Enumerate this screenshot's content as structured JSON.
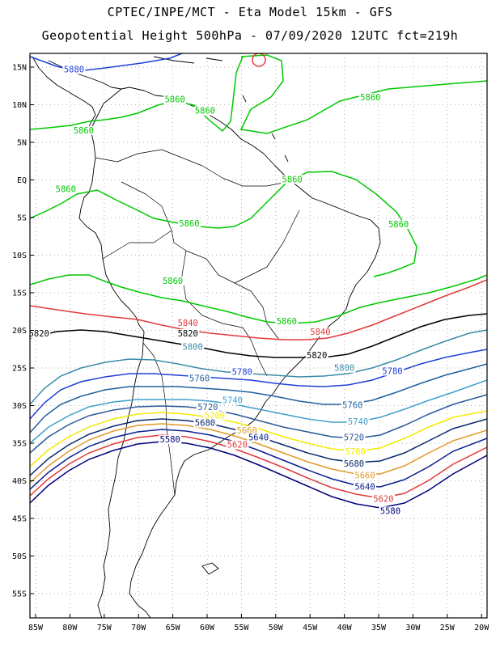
{
  "title": {
    "line1": "CPTEC/INPE/MCT -  Eta Model 15km - GFS",
    "line2": "Geopotential Height 500hPa - 07/09/2020 12UTC fct=219h"
  },
  "axes": {
    "lat_labels": [
      "15N",
      "10N",
      "5N",
      "EQ",
      "5S",
      "10S",
      "15S",
      "20S",
      "25S",
      "30S",
      "35S",
      "40S",
      "45S",
      "50S",
      "55S"
    ],
    "lon_labels": [
      "85W",
      "80W",
      "75W",
      "70W",
      "65W",
      "60W",
      "55W",
      "50W",
      "45W",
      "40W",
      "35W",
      "30W",
      "25W",
      "20W"
    ]
  },
  "chart_data": {
    "type": "contour-map",
    "variable": "Geopotential Height 500hPa",
    "lat_range": [
      -58,
      16
    ],
    "lon_range": [
      -86,
      -20
    ],
    "levels": [
      {
        "value": 5580,
        "color": "#00007a"
      },
      {
        "value": 5620,
        "color": "#e23a3a"
      },
      {
        "value": 5640,
        "color": "#0a1f8f"
      },
      {
        "value": 5660,
        "color": "#e39a2a"
      },
      {
        "value": 5680,
        "color": "#0a2a6e"
      },
      {
        "value": 5700,
        "color": "#f2ea00"
      },
      {
        "value": 5720,
        "color": "#2a5a9a"
      },
      {
        "value": 5740,
        "color": "#3f9fcf"
      },
      {
        "value": 5760,
        "color": "#1f5f9f"
      },
      {
        "value": 5780,
        "color": "#1e40d8"
      },
      {
        "value": 5800,
        "color": "#3a8aa8"
      },
      {
        "value": 5820,
        "color": "#000000"
      },
      {
        "value": 5840,
        "color": "#e23a3a"
      },
      {
        "value": 5860,
        "color": "#00c800"
      },
      {
        "value": 5880,
        "color": "#1e40d8"
      }
    ],
    "contour_labels": [
      {
        "text": "5880",
        "lon": -79.4,
        "lat": 14.3,
        "color": "#1e40d8"
      },
      {
        "text": "5860",
        "lon": -64.7,
        "lat": 10.3,
        "color": "#00c800"
      },
      {
        "text": "5860",
        "lon": -60.3,
        "lat": 8.8,
        "color": "#00c800"
      },
      {
        "text": "5860",
        "lon": -36.2,
        "lat": 10.6,
        "color": "#00c800"
      },
      {
        "text": "5860",
        "lon": -78.0,
        "lat": 6.2,
        "color": "#00c800"
      },
      {
        "text": "5860",
        "lon": -47.6,
        "lat": -0.3,
        "color": "#00c800"
      },
      {
        "text": "5860",
        "lon": -80.6,
        "lat": -1.6,
        "color": "#00c800"
      },
      {
        "text": "5860",
        "lon": -62.6,
        "lat": -6.2,
        "color": "#00c800"
      },
      {
        "text": "5860",
        "lon": -32.1,
        "lat": -6.3,
        "color": "#00c800"
      },
      {
        "text": "5860",
        "lon": -65.0,
        "lat": -13.8,
        "color": "#00c800"
      },
      {
        "text": "5860",
        "lon": -48.4,
        "lat": -19.2,
        "color": "#00c800"
      },
      {
        "text": "5840",
        "lon": -62.8,
        "lat": -19.4,
        "color": "#e23a3a"
      },
      {
        "text": "5840",
        "lon": -43.5,
        "lat": -20.6,
        "color": "#e23a3a"
      },
      {
        "text": "5820",
        "lon": -84.5,
        "lat": -20.8,
        "color": "#000000"
      },
      {
        "text": "5820",
        "lon": -62.8,
        "lat": -20.8,
        "color": "#000000"
      },
      {
        "text": "5820",
        "lon": -44.0,
        "lat": -23.7,
        "color": "#000000"
      },
      {
        "text": "5800",
        "lon": -62.1,
        "lat": -22.6,
        "color": "#3a8aa8"
      },
      {
        "text": "5800",
        "lon": -40.0,
        "lat": -25.4,
        "color": "#3a8aa8"
      },
      {
        "text": "5780",
        "lon": -54.9,
        "lat": -25.9,
        "color": "#1e40d8"
      },
      {
        "text": "5780",
        "lon": -33.0,
        "lat": -25.8,
        "color": "#1e40d8"
      },
      {
        "text": "5760",
        "lon": -61.1,
        "lat": -26.8,
        "color": "#1f5f9f"
      },
      {
        "text": "5760",
        "lon": -38.8,
        "lat": -30.3,
        "color": "#1f5f9f"
      },
      {
        "text": "5740",
        "lon": -56.3,
        "lat": -29.7,
        "color": "#3f9fcf"
      },
      {
        "text": "5740",
        "lon": -38.0,
        "lat": -32.5,
        "color": "#3f9fcf"
      },
      {
        "text": "5720",
        "lon": -59.9,
        "lat": -30.6,
        "color": "#2a5a9a"
      },
      {
        "text": "5720",
        "lon": -38.6,
        "lat": -34.6,
        "color": "#2a5a9a"
      },
      {
        "text": "5700",
        "lon": -58.9,
        "lat": -31.7,
        "color": "#f2ea00"
      },
      {
        "text": "5700",
        "lon": -38.4,
        "lat": -36.5,
        "color": "#f2ea00"
      },
      {
        "text": "5680",
        "lon": -60.3,
        "lat": -32.7,
        "color": "#0a2a6e"
      },
      {
        "text": "5680",
        "lon": -38.6,
        "lat": -38.1,
        "color": "#0a2a6e"
      },
      {
        "text": "5660",
        "lon": -54.2,
        "lat": -33.7,
        "color": "#e39a2a"
      },
      {
        "text": "5660",
        "lon": -37.0,
        "lat": -39.7,
        "color": "#e39a2a"
      },
      {
        "text": "5640",
        "lon": -52.5,
        "lat": -34.6,
        "color": "#0a1f8f"
      },
      {
        "text": "5640",
        "lon": -37.0,
        "lat": -41.2,
        "color": "#0a1f8f"
      },
      {
        "text": "5620",
        "lon": -55.6,
        "lat": -35.6,
        "color": "#e23a3a"
      },
      {
        "text": "5620",
        "lon": -34.3,
        "lat": -42.8,
        "color": "#e23a3a"
      },
      {
        "text": "5580",
        "lon": -65.4,
        "lat": -34.9,
        "color": "#00007a"
      },
      {
        "text": "5580",
        "lon": -33.3,
        "lat": -44.4,
        "color": "#00007a"
      }
    ]
  }
}
